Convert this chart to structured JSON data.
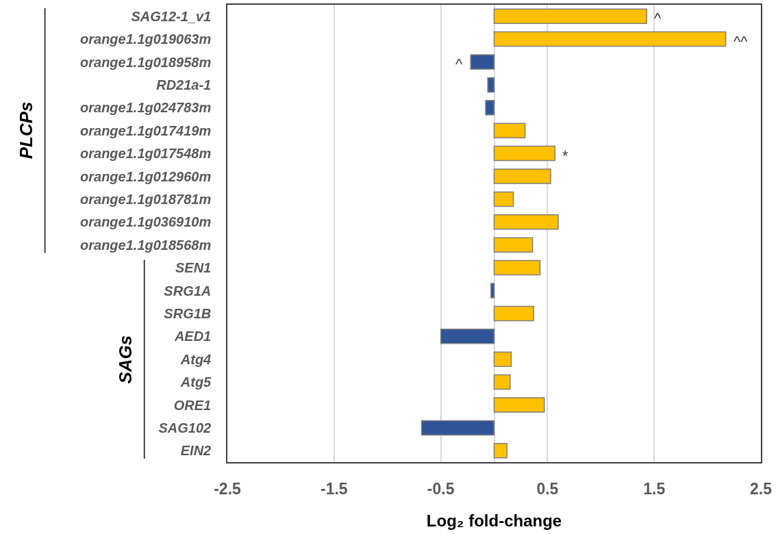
{
  "chart_data": {
    "type": "bar",
    "orientation": "horizontal",
    "categories": [
      "SAG12-1_v1",
      "orange1.1g019063m",
      "orange1.1g018958m",
      "RD21a-1",
      "orange1.1g024783m",
      "orange1.1g017419m",
      "orange1.1g017548m",
      "orange1.1g012960m",
      "orange1.1g018781m",
      "orange1.1g036910m",
      "orange1.1g018568m",
      "SEN1",
      "SRG1A",
      "SRG1B",
      "AED1",
      "Atg4",
      "Atg5",
      "ORE1",
      "SAG102",
      "EIN2"
    ],
    "values": [
      1.43,
      2.17,
      -0.22,
      -0.06,
      -0.08,
      0.29,
      0.57,
      0.53,
      0.18,
      0.6,
      0.36,
      0.43,
      -0.03,
      0.37,
      -0.5,
      0.16,
      0.15,
      0.47,
      -0.68,
      0.12
    ],
    "colors": [
      "#ffc000",
      "#ffc000",
      "#2f5597",
      "#2f5597",
      "#2f5597",
      "#ffc000",
      "#ffc000",
      "#ffc000",
      "#ffc000",
      "#ffc000",
      "#ffc000",
      "#ffc000",
      "#2f5597",
      "#ffc000",
      "#2f5597",
      "#ffc000",
      "#ffc000",
      "#ffc000",
      "#2f5597",
      "#ffc000"
    ],
    "xlabel": "Log₂ fold-change",
    "xlim": [
      -2.5,
      2.5
    ],
    "xticks": [
      -2.5,
      -1.5,
      -0.5,
      0.5,
      1.5,
      2.5
    ],
    "grid": "x",
    "annotations": [
      {
        "text": "^",
        "x": 1.43,
        "y": "SAG12-1_v1"
      },
      {
        "text": "^^",
        "x": 2.17,
        "y": "orange1.1g019063m"
      },
      {
        "text": "^",
        "x": -0.22,
        "y": "orange1.1g018958m"
      },
      {
        "text": "*",
        "x": 0.57,
        "y": "orange1.1g017548m"
      },
      "PLCPs",
      "SAGs"
    ]
  }
}
